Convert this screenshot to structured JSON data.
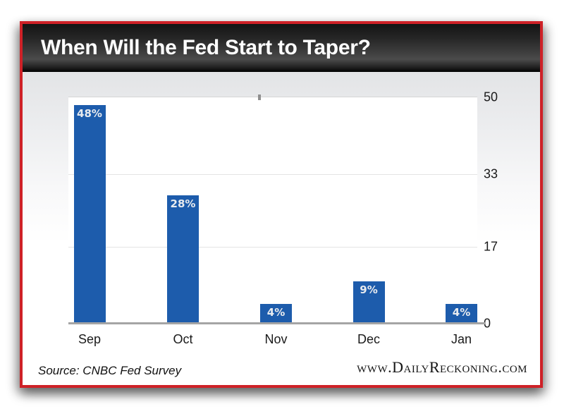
{
  "header": {
    "title": "When Will the Fed Start to Taper?"
  },
  "chart_data": {
    "type": "bar",
    "title": "When Will the Fed Start to Taper?",
    "categories": [
      "Sep",
      "Oct",
      "Nov",
      "Dec",
      "Jan"
    ],
    "values": [
      48,
      28,
      4,
      9,
      4
    ],
    "value_labels": [
      "48%",
      "28%",
      "4%",
      "9%",
      "4%"
    ],
    "xlabel": "",
    "ylabel": "",
    "ylim": [
      0,
      50
    ],
    "yticks": [
      50,
      33,
      17,
      0
    ],
    "ytick_side": "right",
    "grid": true,
    "bar_color": "#1d5cac",
    "value_label_color": "#e8ebef",
    "plot_background": "#ffffff"
  },
  "footer": {
    "source": "Source: CNBC Fed Survey",
    "site": "www.DailyReckoning.com"
  },
  "colors": {
    "frame_red": "#ce2127",
    "title_bar": "#1c1c1c",
    "baseline_gray": "#a5a5a5"
  }
}
